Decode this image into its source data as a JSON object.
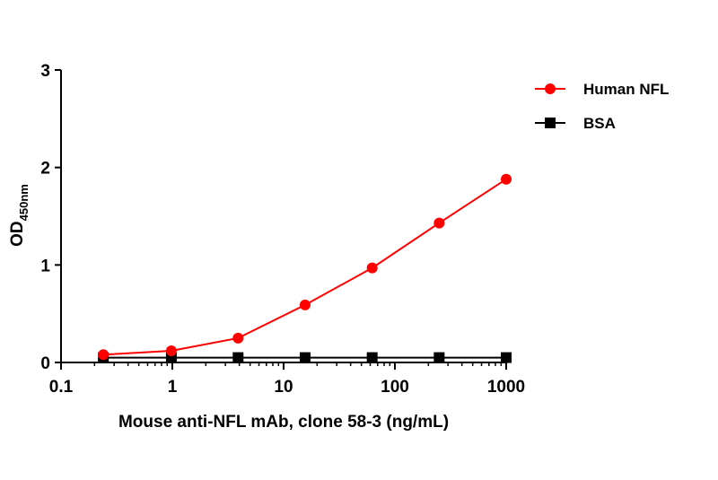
{
  "chart_data": {
    "type": "line",
    "xscale": "log",
    "xlim": [
      0.1,
      1000
    ],
    "ylim": [
      0,
      3
    ],
    "xticks": [
      "0.1",
      "1",
      "10",
      "100",
      "1000"
    ],
    "yticks": [
      "0",
      "1",
      "2",
      "3"
    ],
    "xlabel": "Mouse anti-NFL mAb, clone 58-3 (ng/mL)",
    "ylabel_main": "OD",
    "ylabel_sub": "450nm",
    "legend_position": "top-right",
    "series": [
      {
        "name": "Human NFL",
        "color": "#ff0000",
        "marker": "circle",
        "x": [
          0.24,
          0.98,
          3.9,
          15.6,
          62.5,
          250,
          1000
        ],
        "y": [
          0.08,
          0.12,
          0.25,
          0.59,
          0.97,
          1.43,
          1.88
        ]
      },
      {
        "name": "BSA",
        "color": "#000000",
        "marker": "square",
        "x": [
          0.24,
          0.98,
          3.9,
          15.6,
          62.5,
          250,
          1000
        ],
        "y": [
          0.05,
          0.05,
          0.05,
          0.05,
          0.05,
          0.05,
          0.05
        ]
      }
    ]
  }
}
